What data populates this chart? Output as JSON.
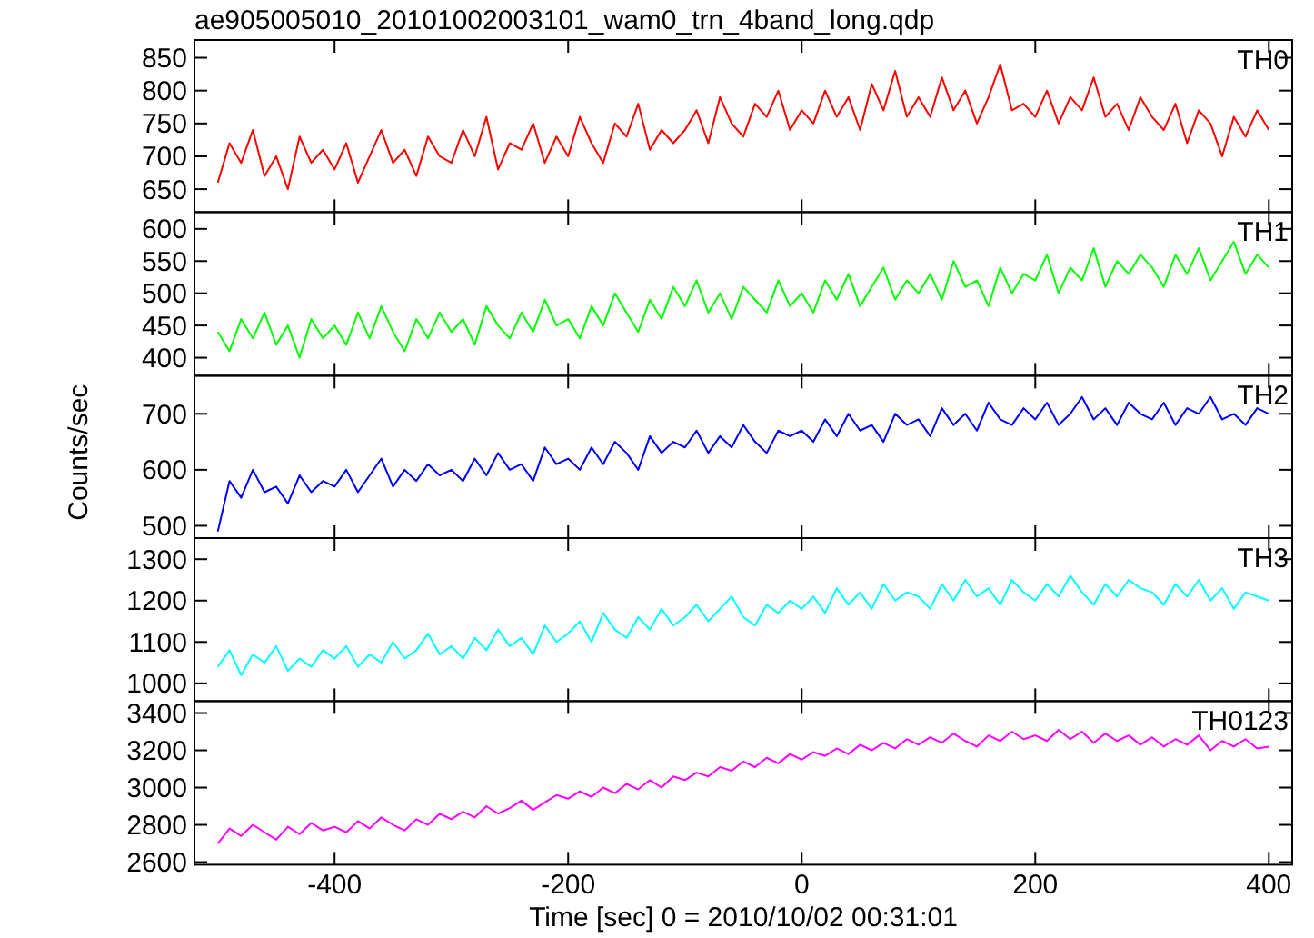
{
  "chart_data": [
    {
      "type": "line",
      "title": "ae905005010_20101002003101_wam0_trn_4band_long.qdp",
      "xlim": [
        -520,
        420
      ],
      "xticks": [
        -400,
        -200,
        0,
        200,
        400
      ],
      "ylim": [
        615,
        877
      ],
      "yticks": [
        650,
        700,
        750,
        800,
        850
      ],
      "tick_labels": "y",
      "x": [
        -500,
        -490,
        -480,
        -470,
        -460,
        -450,
        -440,
        -430,
        -420,
        -410,
        -400,
        -390,
        -380,
        -370,
        -360,
        -350,
        -340,
        -330,
        -320,
        -310,
        -300,
        -290,
        -280,
        -270,
        -260,
        -250,
        -240,
        -230,
        -220,
        -210,
        -200,
        -190,
        -180,
        -170,
        -160,
        -150,
        -140,
        -130,
        -120,
        -110,
        -100,
        -90,
        -80,
        -70,
        -60,
        -50,
        -40,
        -30,
        -20,
        -10,
        0,
        10,
        20,
        30,
        40,
        50,
        60,
        70,
        80,
        90,
        100,
        110,
        120,
        130,
        140,
        150,
        160,
        170,
        180,
        190,
        200,
        210,
        220,
        230,
        240,
        250,
        260,
        270,
        280,
        290,
        300,
        310,
        320,
        330,
        340,
        350,
        360,
        370,
        380,
        390,
        400
      ],
      "series": [
        {
          "name": "TH0",
          "color": "#ff0000",
          "values": [
            660,
            720,
            690,
            740,
            670,
            700,
            650,
            730,
            690,
            710,
            680,
            720,
            660,
            700,
            740,
            690,
            710,
            670,
            730,
            700,
            690,
            740,
            700,
            760,
            680,
            720,
            710,
            750,
            690,
            730,
            700,
            760,
            720,
            690,
            750,
            730,
            780,
            710,
            740,
            720,
            740,
            770,
            720,
            790,
            750,
            730,
            780,
            760,
            800,
            740,
            770,
            750,
            800,
            760,
            790,
            740,
            810,
            770,
            830,
            760,
            790,
            760,
            820,
            770,
            800,
            750,
            790,
            840,
            770,
            780,
            760,
            800,
            750,
            790,
            770,
            820,
            760,
            780,
            740,
            790,
            760,
            740,
            780,
            720,
            770,
            750,
            700,
            760,
            730,
            770,
            740
          ]
        }
      ]
    },
    {
      "type": "line",
      "xlim": [
        -520,
        420
      ],
      "xticks": [
        -400,
        -200,
        0,
        200,
        400
      ],
      "ylim": [
        372,
        626
      ],
      "yticks": [
        400,
        450,
        500,
        550,
        600
      ],
      "tick_labels": "y",
      "x": [
        -500,
        -490,
        -480,
        -470,
        -460,
        -450,
        -440,
        -430,
        -420,
        -410,
        -400,
        -390,
        -380,
        -370,
        -360,
        -350,
        -340,
        -330,
        -320,
        -310,
        -300,
        -290,
        -280,
        -270,
        -260,
        -250,
        -240,
        -230,
        -220,
        -210,
        -200,
        -190,
        -180,
        -170,
        -160,
        -150,
        -140,
        -130,
        -120,
        -110,
        -100,
        -90,
        -80,
        -70,
        -60,
        -50,
        -40,
        -30,
        -20,
        -10,
        0,
        10,
        20,
        30,
        40,
        50,
        60,
        70,
        80,
        90,
        100,
        110,
        120,
        130,
        140,
        150,
        160,
        170,
        180,
        190,
        200,
        210,
        220,
        230,
        240,
        250,
        260,
        270,
        280,
        290,
        300,
        310,
        320,
        330,
        340,
        350,
        360,
        370,
        380,
        390,
        400
      ],
      "series": [
        {
          "name": "TH1",
          "color": "#00ff00",
          "values": [
            440,
            410,
            460,
            430,
            470,
            420,
            450,
            400,
            460,
            430,
            450,
            420,
            470,
            430,
            480,
            440,
            410,
            460,
            430,
            470,
            440,
            460,
            420,
            480,
            450,
            430,
            470,
            440,
            490,
            450,
            460,
            430,
            480,
            450,
            500,
            470,
            440,
            490,
            460,
            510,
            480,
            520,
            470,
            500,
            460,
            510,
            490,
            470,
            520,
            480,
            500,
            470,
            520,
            490,
            530,
            480,
            510,
            540,
            490,
            520,
            500,
            530,
            490,
            550,
            510,
            520,
            480,
            540,
            500,
            530,
            520,
            560,
            500,
            540,
            520,
            570,
            510,
            550,
            530,
            560,
            540,
            510,
            560,
            530,
            570,
            520,
            550,
            580,
            530,
            560,
            540
          ]
        }
      ]
    },
    {
      "type": "line",
      "ylabel": "Counts/sec",
      "xlim": [
        -520,
        420
      ],
      "xticks": [
        -400,
        -200,
        0,
        200,
        400
      ],
      "ylim": [
        478,
        768
      ],
      "yticks": [
        500,
        600,
        700
      ],
      "tick_labels": "y",
      "x": [
        -500,
        -490,
        -480,
        -470,
        -460,
        -450,
        -440,
        -430,
        -420,
        -410,
        -400,
        -390,
        -380,
        -370,
        -360,
        -350,
        -340,
        -330,
        -320,
        -310,
        -300,
        -290,
        -280,
        -270,
        -260,
        -250,
        -240,
        -230,
        -220,
        -210,
        -200,
        -190,
        -180,
        -170,
        -160,
        -150,
        -140,
        -130,
        -120,
        -110,
        -100,
        -90,
        -80,
        -70,
        -60,
        -50,
        -40,
        -30,
        -20,
        -10,
        0,
        10,
        20,
        30,
        40,
        50,
        60,
        70,
        80,
        90,
        100,
        110,
        120,
        130,
        140,
        150,
        160,
        170,
        180,
        190,
        200,
        210,
        220,
        230,
        240,
        250,
        260,
        270,
        280,
        290,
        300,
        310,
        320,
        330,
        340,
        350,
        360,
        370,
        380,
        390,
        400
      ],
      "series": [
        {
          "name": "TH2",
          "color": "#0000ff",
          "values": [
            490,
            580,
            550,
            600,
            560,
            570,
            540,
            590,
            560,
            580,
            570,
            600,
            560,
            590,
            620,
            570,
            600,
            580,
            610,
            590,
            600,
            580,
            620,
            590,
            630,
            600,
            610,
            580,
            640,
            610,
            620,
            600,
            640,
            610,
            650,
            630,
            600,
            660,
            630,
            650,
            640,
            670,
            630,
            660,
            640,
            680,
            650,
            630,
            670,
            660,
            670,
            650,
            690,
            660,
            700,
            670,
            680,
            650,
            700,
            680,
            690,
            660,
            710,
            680,
            700,
            670,
            720,
            690,
            680,
            710,
            690,
            720,
            680,
            700,
            730,
            690,
            710,
            680,
            720,
            700,
            690,
            720,
            680,
            710,
            700,
            730,
            690,
            700,
            680,
            710,
            700
          ]
        }
      ]
    },
    {
      "type": "line",
      "xlim": [
        -520,
        420
      ],
      "xticks": [
        -400,
        -200,
        0,
        200,
        400
      ],
      "ylim": [
        957,
        1351
      ],
      "yticks": [
        1000,
        1100,
        1200,
        1300
      ],
      "tick_labels": "y",
      "x": [
        -500,
        -490,
        -480,
        -470,
        -460,
        -450,
        -440,
        -430,
        -420,
        -410,
        -400,
        -390,
        -380,
        -370,
        -360,
        -350,
        -340,
        -330,
        -320,
        -310,
        -300,
        -290,
        -280,
        -270,
        -260,
        -250,
        -240,
        -230,
        -220,
        -210,
        -200,
        -190,
        -180,
        -170,
        -160,
        -150,
        -140,
        -130,
        -120,
        -110,
        -100,
        -90,
        -80,
        -70,
        -60,
        -50,
        -40,
        -30,
        -20,
        -10,
        0,
        10,
        20,
        30,
        40,
        50,
        60,
        70,
        80,
        90,
        100,
        110,
        120,
        130,
        140,
        150,
        160,
        170,
        180,
        190,
        200,
        210,
        220,
        230,
        240,
        250,
        260,
        270,
        280,
        290,
        300,
        310,
        320,
        330,
        340,
        350,
        360,
        370,
        380,
        390,
        400
      ],
      "series": [
        {
          "name": "TH3",
          "color": "#00ffff",
          "values": [
            1040,
            1080,
            1020,
            1070,
            1050,
            1090,
            1030,
            1060,
            1040,
            1080,
            1060,
            1090,
            1040,
            1070,
            1050,
            1100,
            1060,
            1080,
            1120,
            1070,
            1090,
            1060,
            1110,
            1080,
            1130,
            1090,
            1110,
            1070,
            1140,
            1100,
            1120,
            1150,
            1100,
            1170,
            1130,
            1110,
            1160,
            1130,
            1180,
            1140,
            1160,
            1190,
            1150,
            1180,
            1210,
            1160,
            1140,
            1190,
            1170,
            1200,
            1180,
            1210,
            1170,
            1230,
            1190,
            1220,
            1180,
            1240,
            1200,
            1220,
            1210,
            1180,
            1240,
            1200,
            1250,
            1210,
            1230,
            1190,
            1250,
            1220,
            1200,
            1240,
            1210,
            1260,
            1220,
            1190,
            1240,
            1210,
            1250,
            1230,
            1220,
            1190,
            1240,
            1210,
            1250,
            1200,
            1230,
            1180,
            1220,
            1210,
            1200
          ]
        }
      ]
    },
    {
      "type": "line",
      "xlabel": "Time [sec] 0 = 2010/10/02 00:31:01",
      "xlim": [
        -520,
        420
      ],
      "xticks": [
        -400,
        -200,
        0,
        200,
        400
      ],
      "ylim": [
        2586,
        3464
      ],
      "yticks": [
        2600,
        2800,
        3000,
        3200,
        3400
      ],
      "x": [
        -500,
        -490,
        -480,
        -470,
        -460,
        -450,
        -440,
        -430,
        -420,
        -410,
        -400,
        -390,
        -380,
        -370,
        -360,
        -350,
        -340,
        -330,
        -320,
        -310,
        -300,
        -290,
        -280,
        -270,
        -260,
        -250,
        -240,
        -230,
        -220,
        -210,
        -200,
        -190,
        -180,
        -170,
        -160,
        -150,
        -140,
        -130,
        -120,
        -110,
        -100,
        -90,
        -80,
        -70,
        -60,
        -50,
        -40,
        -30,
        -20,
        -10,
        0,
        10,
        20,
        30,
        40,
        50,
        60,
        70,
        80,
        90,
        100,
        110,
        120,
        130,
        140,
        150,
        160,
        170,
        180,
        190,
        200,
        210,
        220,
        230,
        240,
        250,
        260,
        270,
        280,
        290,
        300,
        310,
        320,
        330,
        340,
        350,
        360,
        370,
        380,
        390,
        400
      ],
      "series": [
        {
          "name": "TH0123",
          "color": "#ff00ff",
          "values": [
            2700,
            2780,
            2740,
            2800,
            2760,
            2720,
            2790,
            2750,
            2810,
            2770,
            2790,
            2760,
            2820,
            2780,
            2840,
            2800,
            2770,
            2830,
            2800,
            2860,
            2830,
            2870,
            2840,
            2900,
            2860,
            2890,
            2930,
            2880,
            2920,
            2960,
            2940,
            2980,
            2950,
            3000,
            2970,
            3020,
            2990,
            3040,
            3000,
            3060,
            3040,
            3080,
            3060,
            3110,
            3090,
            3140,
            3110,
            3160,
            3130,
            3180,
            3150,
            3190,
            3170,
            3210,
            3180,
            3230,
            3200,
            3240,
            3210,
            3260,
            3230,
            3270,
            3240,
            3290,
            3250,
            3220,
            3280,
            3250,
            3300,
            3260,
            3280,
            3250,
            3310,
            3260,
            3300,
            3240,
            3290,
            3250,
            3280,
            3230,
            3270,
            3220,
            3260,
            3230,
            3280,
            3200,
            3250,
            3220,
            3260,
            3210,
            3220
          ]
        }
      ]
    }
  ]
}
